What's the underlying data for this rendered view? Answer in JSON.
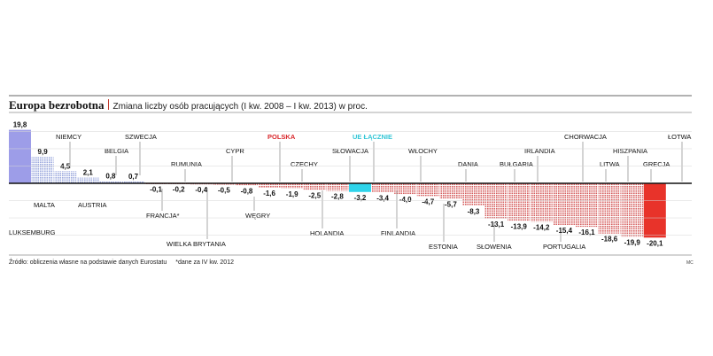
{
  "header": {
    "title": "Europa bezrobotna",
    "subtitle": "Zmiana liczby osób pracujących (I kw. 2008 – I kw. 2013) w proc."
  },
  "footer": {
    "source": "Źródło: obliczenia własne na podstawie danych Eurostatu",
    "note": "*dane za IV kw. 2012",
    "credit": "MC"
  },
  "colors": {
    "positive": "#9d9de8",
    "positive_pattern": "#9aa7dd",
    "negative_pattern": "#d65f5f",
    "negative_solid": "#e8332a",
    "poland_label": "#d9282c",
    "eu_label": "#33c6d6",
    "eu_bar": "#2fd4ea"
  },
  "chart_data": {
    "type": "bar",
    "title": "Europa bezrobotna",
    "subtitle": "Zmiana liczby osób pracujących (I kw. 2008 – I kw. 2013) w proc.",
    "xlabel": "",
    "ylabel": "",
    "ylim": [
      -20.1,
      19.8
    ],
    "grid": true,
    "categories": [
      "LUKSEMBURG",
      "MALTA",
      "NIEMCY",
      "AUSTRIA",
      "BELGIA",
      "SZWECJA",
      "FRANCJA*",
      "RUMUNIA",
      "WIELKA BRYTANIA",
      "CYPR",
      "WĘGRY",
      "POLSKA",
      "CZECHY",
      "HOLANDIA",
      "SŁOWACJA",
      "UE ŁĄCZNIE",
      "FINLANDIA",
      "WŁOCHY",
      "ESTONIA",
      "DANIA",
      "SŁOWENIA",
      "BUŁGARIA",
      "IRLANDIA",
      "PORTUGALIA",
      "CHORWACJA",
      "LITWA",
      "HISZPANIA",
      "GRECJA",
      "ŁOTWA"
    ],
    "values": [
      19.8,
      9.9,
      4.5,
      2.1,
      0.8,
      0.7,
      -0.1,
      -0.2,
      -0.4,
      -0.5,
      -0.8,
      -1.6,
      -1.9,
      -2.5,
      -2.8,
      -3.2,
      -3.4,
      -4.0,
      -4.7,
      -5.7,
      -8.3,
      -13.1,
      -13.9,
      -14.2,
      -15.4,
      -16.1,
      -18.6,
      -19.9,
      -20.1
    ],
    "value_labels": [
      "19,8",
      "9,9",
      "4,5",
      "2,1",
      "0,8",
      "0,7",
      "-0,1",
      "-0,2",
      "-0,4",
      "-0,5",
      "-0,8",
      "-1,6",
      "-1,9",
      "-2,5",
      "-2,8",
      "-3,2",
      "-3,4",
      "-4,0",
      "-4,7",
      "-5,7",
      "-8,3",
      "-13,1",
      "-13,9",
      "-14,2",
      "-15,4",
      "-16,1",
      "-18,6",
      "-19,9",
      "-20,1"
    ],
    "highlight": {
      "POLSKA": "poland",
      "UE ŁĄCZNIE": "eu",
      "LUKSEMBURG": "solid",
      "ŁOTWA": "solid"
    }
  }
}
